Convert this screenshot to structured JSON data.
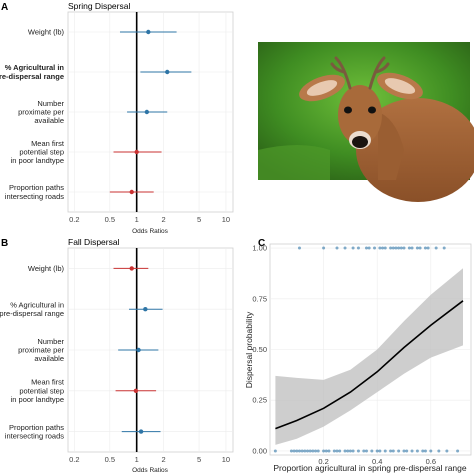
{
  "photo": {
    "description_icon": "deer-photo"
  },
  "chart_data": [
    {
      "panel": "A",
      "type": "scatter",
      "subtype": "forest-plot",
      "title": "Spring Dispersal",
      "xlabel": "Odds Ratios",
      "ylabel": "",
      "xscale": "log",
      "xlim": [
        0.17,
        12
      ],
      "xticks": [
        0.2,
        0.5,
        1,
        2,
        5,
        10
      ],
      "xtick_labels": [
        "0.2",
        "0.5",
        "1",
        "2",
        "5",
        "10"
      ],
      "reference_line": 1,
      "grid": true,
      "categories": [
        "Weight (lb)",
        "% Agricultural in\npre-dispersal range",
        "Number\nproximate per\navailable",
        "Mean first\npotential step\nin poor landtype",
        "Proportion paths\nintersecting roads"
      ],
      "bold_categories": [
        1
      ],
      "estimates": [
        1.35,
        2.2,
        1.3,
        1.0,
        0.88
      ],
      "ci_lower": [
        0.65,
        1.1,
        0.78,
        0.55,
        0.5
      ],
      "ci_upper": [
        2.8,
        4.1,
        2.2,
        1.9,
        1.55
      ],
      "colors": [
        "#2e75a6",
        "#2e75a6",
        "#2e75a6",
        "#c93232",
        "#c93232"
      ]
    },
    {
      "panel": "B",
      "type": "scatter",
      "subtype": "forest-plot",
      "title": "Fall Dispersal",
      "xlabel": "Odds Ratios",
      "ylabel": "",
      "xscale": "log",
      "xlim": [
        0.17,
        12
      ],
      "xticks": [
        0.2,
        0.5,
        1,
        2,
        5,
        10
      ],
      "xtick_labels": [
        "0.2",
        "0.5",
        "1",
        "2",
        "5",
        "10"
      ],
      "reference_line": 1,
      "grid": true,
      "categories": [
        "Weight (lb)",
        "% Agricultural in\npre-dispersal range",
        "Number\nproximate per\navailable",
        "Mean first\npotential step\nin poor landtype",
        "Proportion paths\nintersecting roads"
      ],
      "bold_categories": [],
      "estimates": [
        0.88,
        1.25,
        1.05,
        0.98,
        1.12
      ],
      "ci_lower": [
        0.55,
        0.82,
        0.62,
        0.58,
        0.68
      ],
      "ci_upper": [
        1.35,
        1.95,
        1.75,
        1.65,
        1.85
      ],
      "colors": [
        "#c93232",
        "#2e75a6",
        "#2e75a6",
        "#c93232",
        "#2e75a6"
      ]
    },
    {
      "panel": "C",
      "type": "line",
      "subtype": "logistic-fit-with-ribbon",
      "title": "",
      "xlabel": "Proportion agricultural in spring pre-dispersal range",
      "ylabel": "Dispersal probability",
      "xlim": [
        0.0,
        0.75
      ],
      "ylim": [
        -0.02,
        1.02
      ],
      "xticks": [
        0.2,
        0.4,
        0.6
      ],
      "xtick_labels": [
        "0.2",
        "0.4",
        "0.6"
      ],
      "yticks": [
        0,
        0.25,
        0.5,
        0.75,
        1
      ],
      "ytick_labels": [
        "0.00",
        "0.25",
        "0.50",
        "0.75",
        "1.00"
      ],
      "grid": true,
      "fit_line": {
        "x": [
          0.02,
          0.1,
          0.2,
          0.3,
          0.4,
          0.5,
          0.6,
          0.72
        ],
        "y": [
          0.11,
          0.15,
          0.21,
          0.29,
          0.39,
          0.51,
          0.62,
          0.74
        ]
      },
      "ribbon": {
        "x": [
          0.02,
          0.1,
          0.2,
          0.3,
          0.4,
          0.5,
          0.6,
          0.72
        ],
        "lower": [
          0.03,
          0.06,
          0.12,
          0.2,
          0.29,
          0.38,
          0.46,
          0.52
        ],
        "upper": [
          0.37,
          0.36,
          0.35,
          0.4,
          0.5,
          0.64,
          0.77,
          0.9
        ]
      },
      "points_dispersed": {
        "y": 1,
        "x": [
          0.11,
          0.2,
          0.25,
          0.28,
          0.31,
          0.33,
          0.36,
          0.37,
          0.39,
          0.41,
          0.42,
          0.43,
          0.45,
          0.46,
          0.47,
          0.48,
          0.49,
          0.5,
          0.52,
          0.53,
          0.55,
          0.56,
          0.58,
          0.59,
          0.62,
          0.65
        ]
      },
      "points_not_dispersed": {
        "y": 0,
        "x": [
          0.02,
          0.08,
          0.09,
          0.1,
          0.11,
          0.12,
          0.13,
          0.14,
          0.15,
          0.16,
          0.17,
          0.18,
          0.2,
          0.21,
          0.22,
          0.24,
          0.25,
          0.26,
          0.28,
          0.29,
          0.3,
          0.31,
          0.33,
          0.35,
          0.36,
          0.38,
          0.4,
          0.41,
          0.43,
          0.45,
          0.46,
          0.48,
          0.5,
          0.51,
          0.53,
          0.55,
          0.57,
          0.58,
          0.6,
          0.63,
          0.66,
          0.7
        ]
      },
      "colors": {
        "points": "#2e75a6",
        "line": "#000000",
        "ribbon": "#bdbdbd"
      }
    }
  ]
}
